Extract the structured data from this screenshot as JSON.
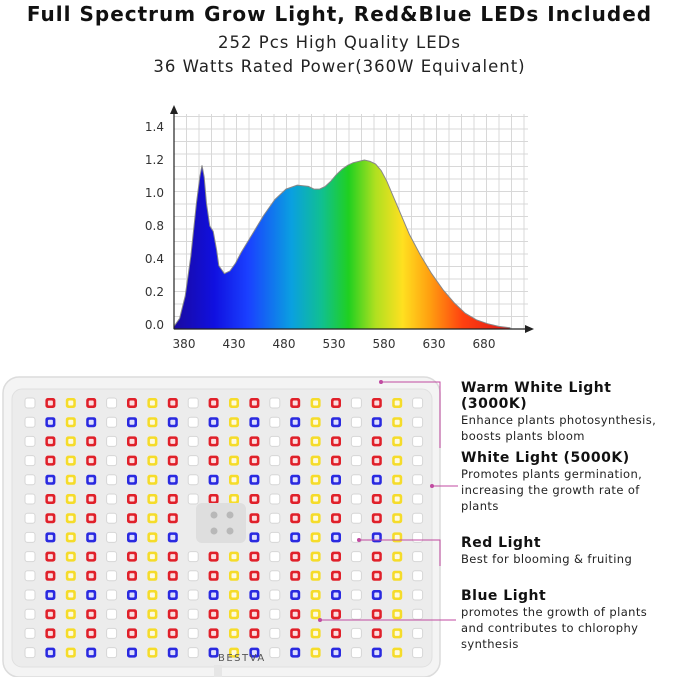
{
  "header": {
    "title": "Full Spectrum Grow Light, Red&Blue LEDs Included",
    "line1": "252 Pcs High Quality LEDs",
    "line2": "36 Watts Rated Power(360W Equivalent)"
  },
  "chart_data": {
    "type": "area",
    "x_ticks": [
      "380",
      "430",
      "480",
      "530",
      "580",
      "630",
      "680"
    ],
    "y_ticks": [
      "0.0",
      "0.2",
      "0.4",
      "0.8",
      "1.0",
      "1.2",
      "1.4"
    ],
    "xlim": [
      380,
      680
    ],
    "x": [
      380,
      385,
      390,
      395,
      400,
      403,
      405,
      407,
      409,
      412,
      415,
      418,
      420,
      425,
      430,
      435,
      440,
      450,
      460,
      470,
      480,
      490,
      500,
      505,
      510,
      515,
      520,
      525,
      530,
      535,
      540,
      545,
      550,
      555,
      560,
      565,
      570,
      575,
      580,
      585,
      590,
      600,
      610,
      620,
      630,
      640,
      650,
      660,
      670,
      680
    ],
    "y": [
      0.02,
      0.08,
      0.25,
      0.55,
      0.95,
      1.15,
      1.24,
      1.15,
      0.95,
      0.78,
      0.74,
      0.6,
      0.48,
      0.42,
      0.44,
      0.5,
      0.58,
      0.72,
      0.86,
      0.98,
      1.06,
      1.09,
      1.08,
      1.06,
      1.06,
      1.08,
      1.12,
      1.17,
      1.21,
      1.24,
      1.26,
      1.27,
      1.28,
      1.27,
      1.25,
      1.2,
      1.12,
      1.02,
      0.92,
      0.82,
      0.72,
      0.56,
      0.42,
      0.3,
      0.2,
      0.12,
      0.07,
      0.04,
      0.02,
      0.01
    ]
  },
  "panel": {
    "brand": "BESTVA"
  },
  "callouts": [
    {
      "title": "Warm White Light (3000K)",
      "lines": [
        "Enhance plants photosynthesis,",
        "boosts plants bloom"
      ]
    },
    {
      "title": "White Light (5000K)",
      "lines": [
        "Promotes plants germination,",
        "increasing the growth rate of",
        "plants"
      ]
    },
    {
      "title": "Red Light",
      "lines": [
        "Best for blooming & fruiting"
      ]
    },
    {
      "title": "Blue Light",
      "lines": [
        "promotes the growth of plants",
        "and contributes to chlorophy",
        "synthesis"
      ]
    }
  ],
  "colors": {
    "red": "#e0202a",
    "blue": "#2a2ae0",
    "yellow": "#f5dc2a",
    "white": "#ffffff",
    "leader": "#c04aa0"
  }
}
